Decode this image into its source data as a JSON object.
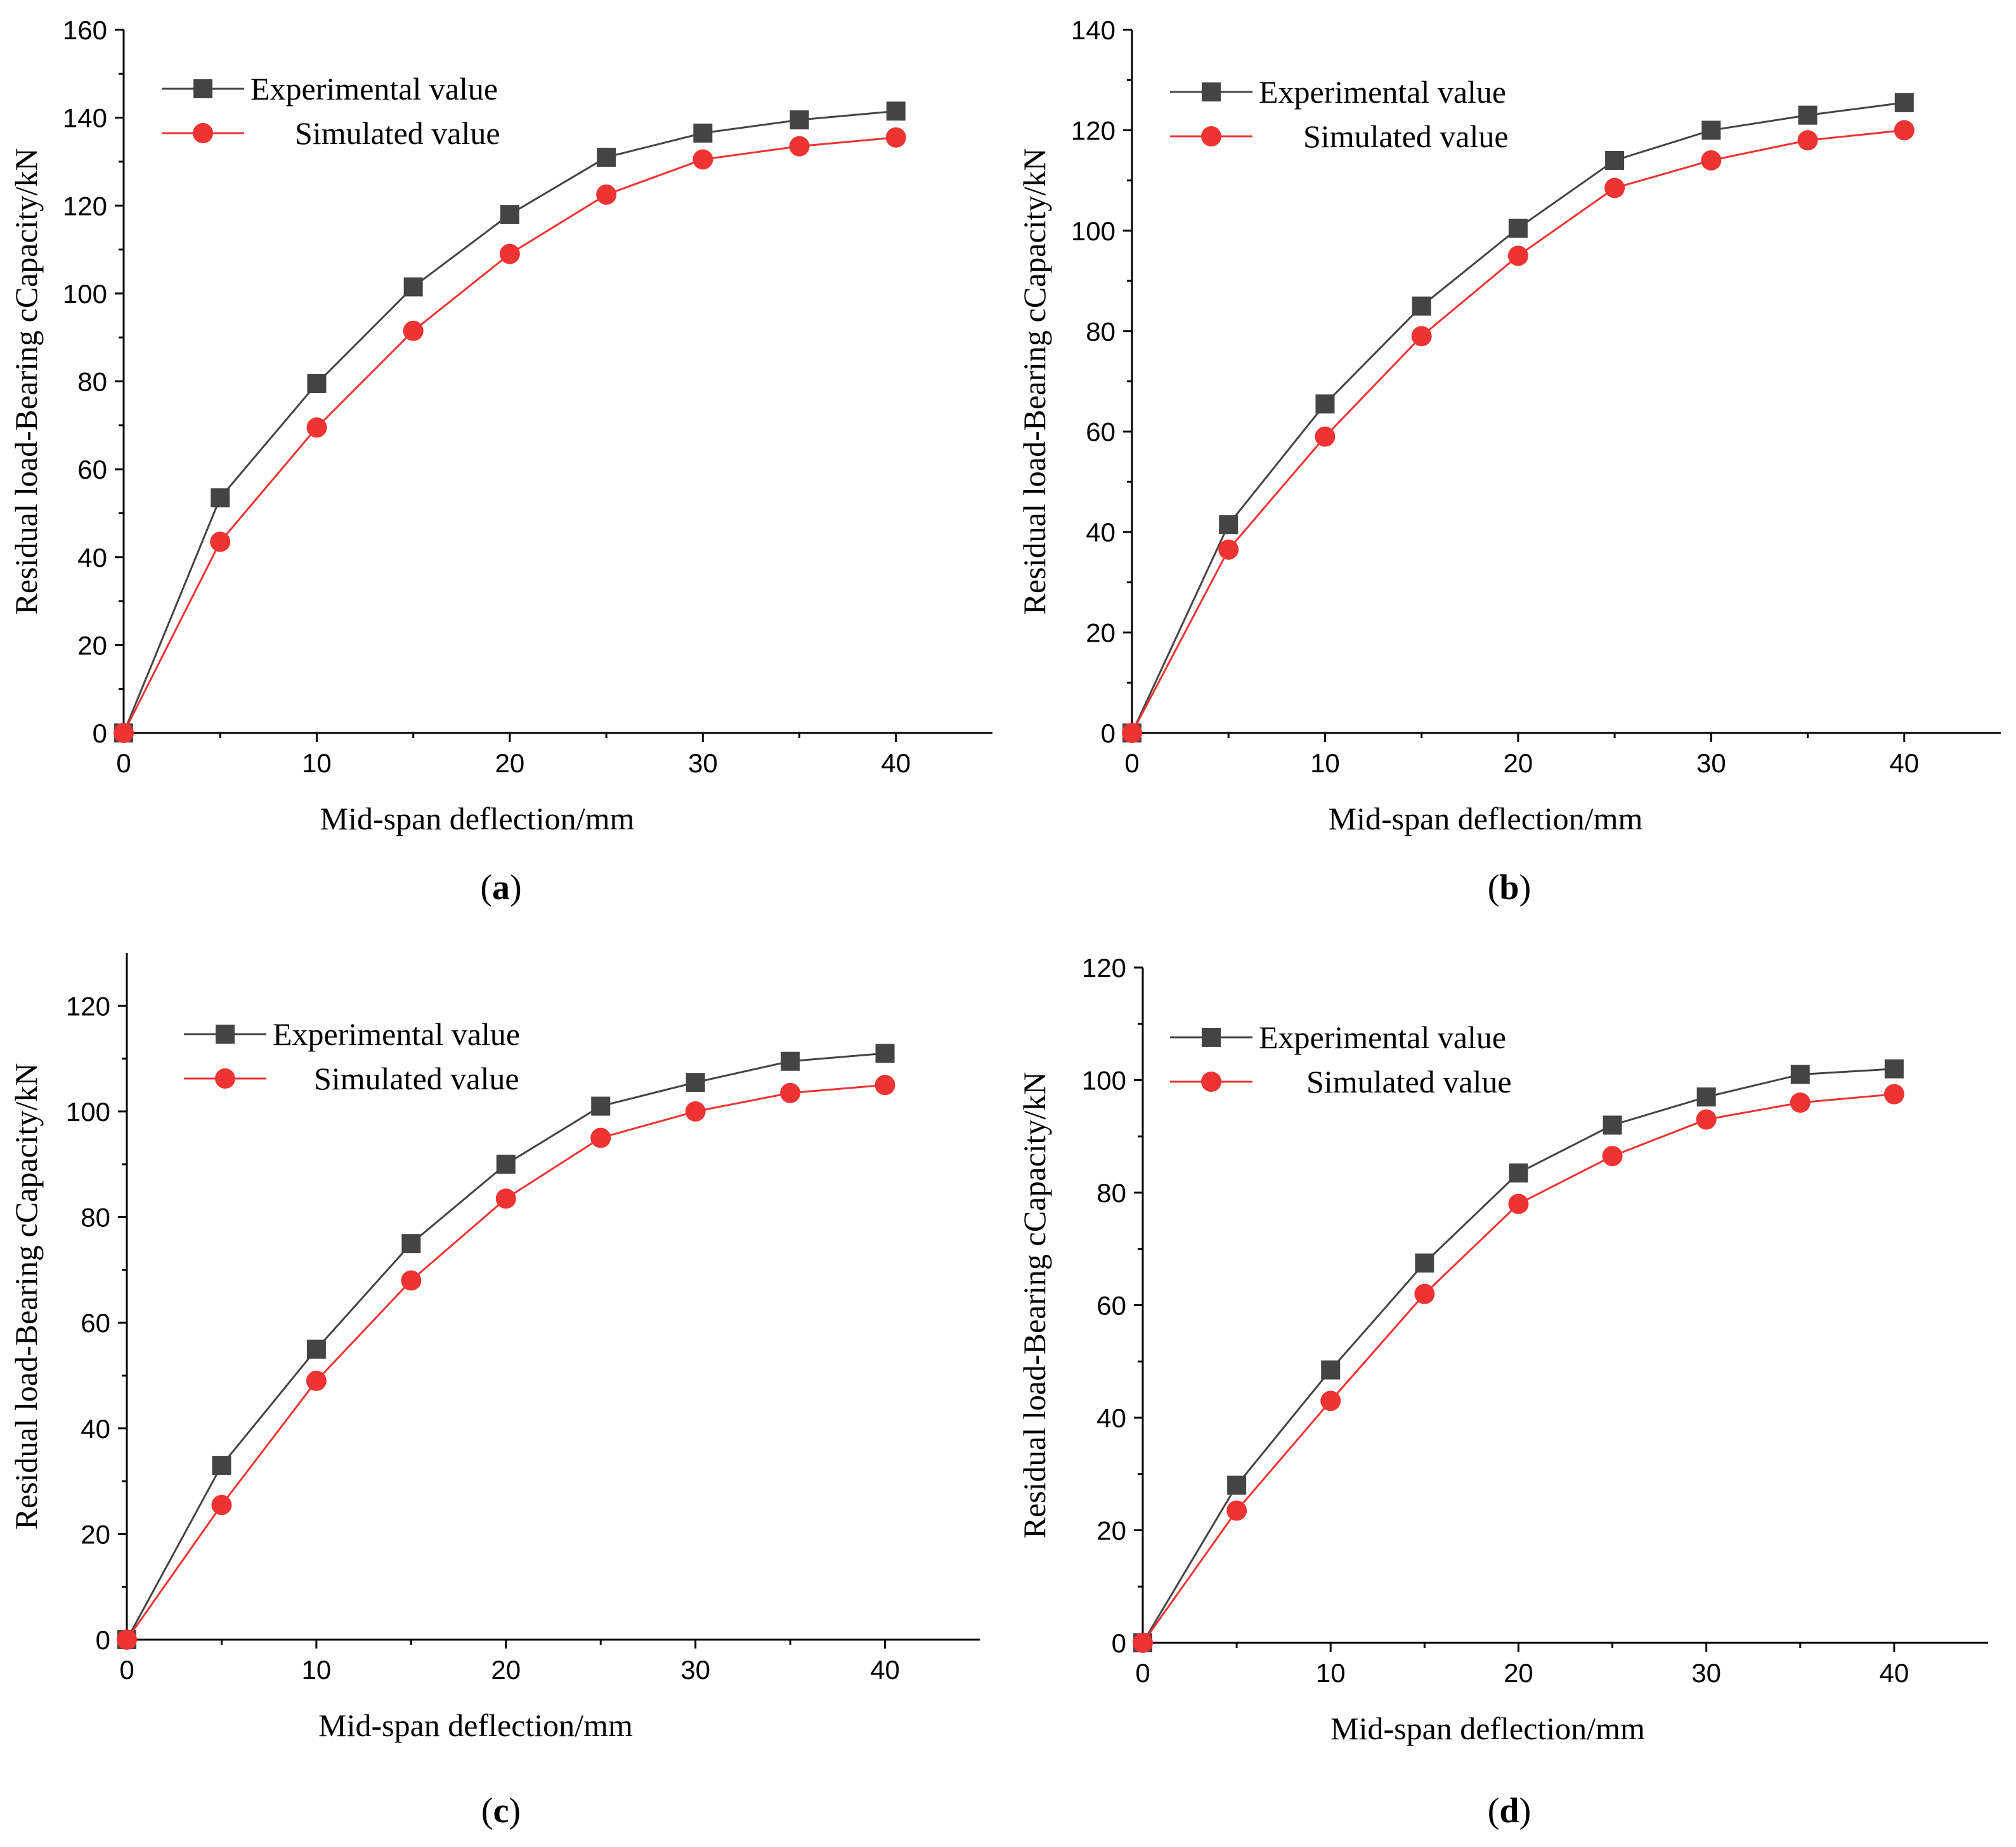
{
  "colors": {
    "experimental": "#444444",
    "simulated": "#ee3333",
    "axis": "#000000"
  },
  "chart_data": [
    {
      "panel": "a",
      "type": "line",
      "caption_open": "(",
      "caption_letter": "a",
      "caption_close": ")",
      "xlabel": "Mid-span deflection/mm",
      "ylabel": "Residual load-Bearing cCapacity/kN",
      "xlim": [
        0,
        45
      ],
      "ylim": [
        0,
        160
      ],
      "xticks": [
        0,
        10,
        20,
        30,
        40
      ],
      "yticks": [
        0,
        20,
        40,
        60,
        80,
        100,
        120,
        140,
        160
      ],
      "x": [
        0,
        5,
        10,
        15,
        20,
        25,
        30,
        35,
        40
      ],
      "series": [
        {
          "name": "Experimental value",
          "marker": "square",
          "values": [
            0,
            53.5,
            79.5,
            101.5,
            118,
            131,
            136.5,
            139.5,
            141.5
          ]
        },
        {
          "name": "Simulated value",
          "marker": "circle",
          "values": [
            0,
            43.5,
            69.5,
            91.5,
            109,
            122.5,
            130.5,
            133.5,
            135.5
          ]
        }
      ]
    },
    {
      "panel": "b",
      "type": "line",
      "caption_open": "(",
      "caption_letter": "b",
      "caption_close": ")",
      "xlabel": "Mid-span deflection/mm",
      "ylabel": "Residual load-Bearing cCapacity/kN",
      "xlim": [
        0,
        45
      ],
      "ylim": [
        0,
        140
      ],
      "xticks": [
        0,
        10,
        20,
        30,
        40
      ],
      "yticks": [
        0,
        20,
        40,
        60,
        80,
        100,
        120,
        140
      ],
      "x": [
        0,
        5,
        10,
        15,
        20,
        25,
        30,
        35,
        40
      ],
      "series": [
        {
          "name": "Experimental value",
          "marker": "square",
          "values": [
            0,
            41.5,
            65.5,
            85,
            100.5,
            114,
            120,
            123,
            125.5
          ]
        },
        {
          "name": "Simulated value",
          "marker": "circle",
          "values": [
            0,
            36.5,
            59,
            79,
            95,
            108.5,
            114,
            118,
            120
          ]
        }
      ]
    },
    {
      "panel": "c",
      "type": "line",
      "caption_open": "(",
      "caption_letter": "c",
      "caption_close": ")",
      "xlabel": "Mid-span deflection/mm",
      "ylabel": "Residual load-Bearing cCapacity/kN",
      "xlim": [
        0,
        45
      ],
      "ylim": [
        0,
        130
      ],
      "xticks": [
        0,
        10,
        20,
        30,
        40
      ],
      "yticks": [
        0,
        20,
        40,
        60,
        80,
        100,
        120
      ],
      "x": [
        0,
        5,
        10,
        15,
        20,
        25,
        30,
        35,
        40
      ],
      "series": [
        {
          "name": "Experimental value",
          "marker": "square",
          "values": [
            0,
            33,
            55,
            75,
            90,
            101,
            105.5,
            109.5,
            111
          ]
        },
        {
          "name": "Simulated value",
          "marker": "circle",
          "values": [
            0,
            25.5,
            49,
            68,
            83.5,
            95,
            100,
            103.5,
            105
          ]
        }
      ]
    },
    {
      "panel": "d",
      "type": "line",
      "caption_open": "(",
      "caption_letter": "d",
      "caption_close": ")",
      "xlabel": "Mid-span deflection/mm",
      "ylabel": "Residual load-Bearing cCapacity/kN",
      "xlim": [
        0,
        45
      ],
      "ylim": [
        0,
        120
      ],
      "xticks": [
        0,
        10,
        20,
        30,
        40
      ],
      "yticks": [
        0,
        20,
        40,
        60,
        80,
        100,
        120
      ],
      "x": [
        0,
        5,
        10,
        15,
        20,
        25,
        30,
        35,
        40
      ],
      "series": [
        {
          "name": "Experimental value",
          "marker": "square",
          "values": [
            0,
            28,
            48.5,
            67.5,
            83.5,
            92,
            97,
            101,
            102
          ]
        },
        {
          "name": "Simulated value",
          "marker": "circle",
          "values": [
            0,
            23.5,
            43,
            62,
            78,
            86.5,
            93,
            96,
            97.5
          ]
        }
      ]
    }
  ]
}
